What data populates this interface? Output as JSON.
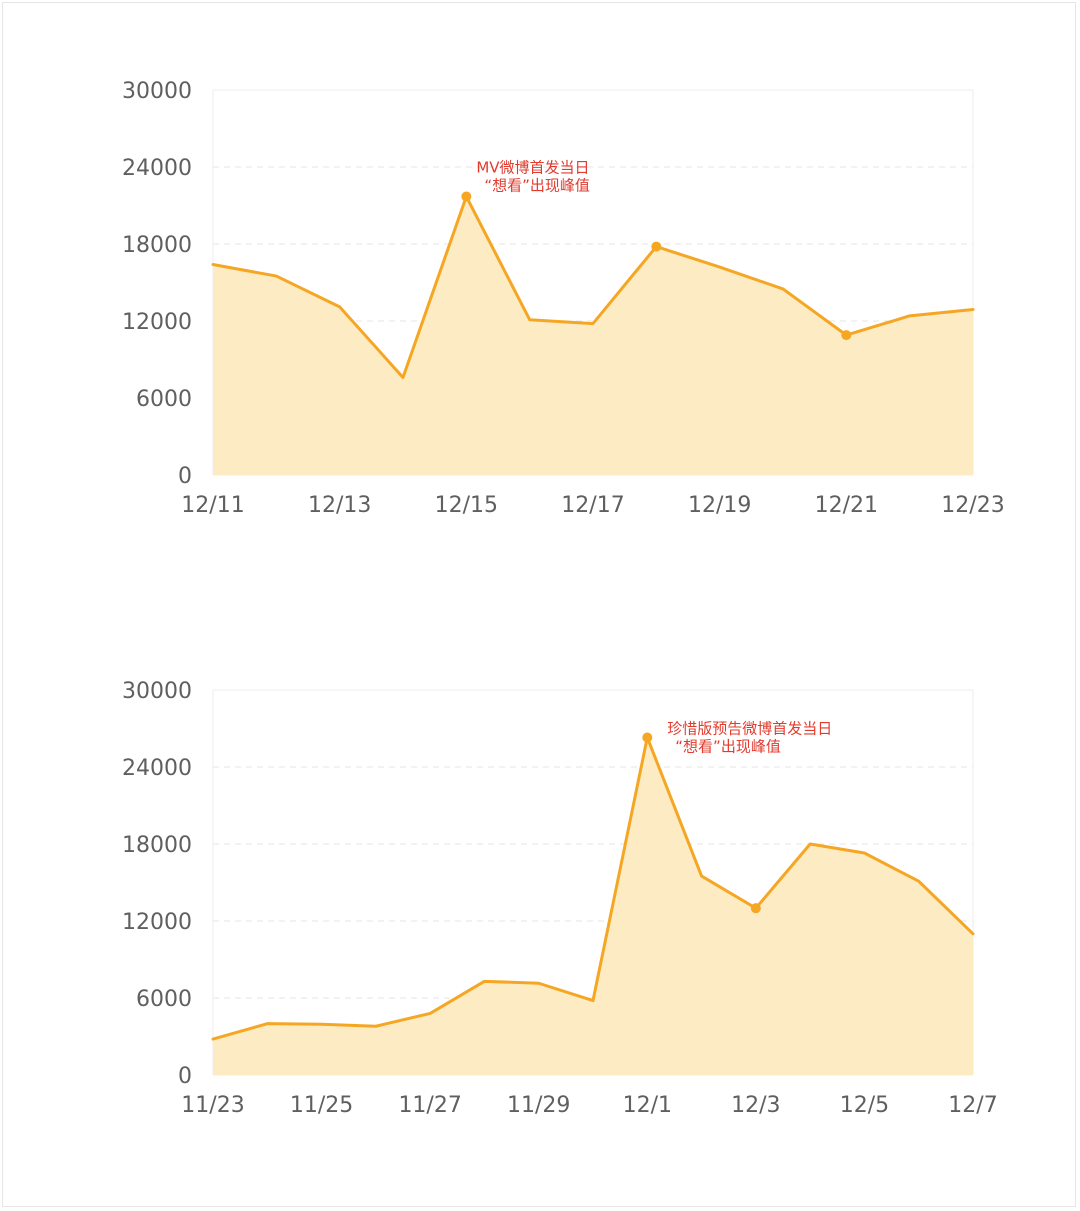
{
  "charts": [
    {
      "type": "area",
      "x": [
        "12/11",
        "12/12",
        "12/13",
        "12/14",
        "12/15",
        "12/16",
        "12/17",
        "12/18",
        "12/19",
        "12/20",
        "12/21",
        "12/22",
        "12/23"
      ],
      "x_tick_labels": [
        "12/11",
        "12/13",
        "12/15",
        "12/17",
        "12/19",
        "12/21",
        "12/23"
      ],
      "y_tick_labels": [
        "0",
        "6000",
        "12000",
        "18000",
        "24000",
        "30000"
      ],
      "ylim": [
        0,
        30000
      ],
      "values": [
        16400,
        15500,
        13100,
        7600,
        21700,
        12100,
        11800,
        17800,
        16200,
        14500,
        10900,
        12400,
        12900
      ],
      "markers": [
        "12/15",
        "12/18",
        "12/21"
      ],
      "annotation": {
        "x": "12/15",
        "lines": [
          "MV微博首发当日",
          "“想看”出现峰值"
        ]
      },
      "colors": {
        "line": "#f5a623",
        "fill": "#fdebc4",
        "annotation": "#e23b2e"
      }
    },
    {
      "type": "area",
      "x": [
        "11/23",
        "11/24",
        "11/25",
        "11/26",
        "11/27",
        "11/28",
        "11/29",
        "11/30",
        "12/1",
        "12/2",
        "12/3",
        "12/4",
        "12/5",
        "12/6",
        "12/7"
      ],
      "x_tick_labels": [
        "11/23",
        "11/25",
        "11/27",
        "11/29",
        "12/1",
        "12/3",
        "12/5",
        "12/7"
      ],
      "y_tick_labels": [
        "0",
        "6000",
        "12000",
        "18000",
        "24000",
        "30000"
      ],
      "ylim": [
        0,
        30000
      ],
      "values": [
        2800,
        4000,
        3950,
        3800,
        4800,
        7300,
        7150,
        5800,
        26300,
        15500,
        13000,
        18000,
        17300,
        15100,
        11000
      ],
      "markers": [
        "12/1",
        "12/3"
      ],
      "annotation": {
        "x": "12/1",
        "lines": [
          "珍惜版预告微博首发当日",
          "“想看”出现峰值"
        ]
      },
      "colors": {
        "line": "#f5a623",
        "fill": "#fdebc4",
        "annotation": "#e23b2e"
      }
    }
  ]
}
